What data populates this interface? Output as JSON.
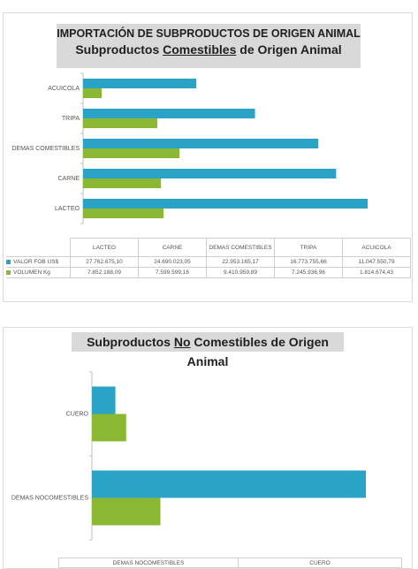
{
  "colors": {
    "valor": "#2aa3c7",
    "volumen": "#8ab833",
    "title_bg": "#d9d9d9"
  },
  "chart1": {
    "title_line1": "IMPORTACIÓN DE SUBPRODUCTOS DE ORIGEN ANIMAL",
    "title_line2_pre": "Subproductos ",
    "title_line2_u": "Comestibles",
    "title_line2_post": " de Origen Animal",
    "table_headers": [
      "LACTEO",
      "CARNE",
      "DEMAS COMESTIBLES",
      "TRIPA",
      "ACUICOLA"
    ],
    "table_rows": [
      {
        "label": "VALOR FOB US$",
        "cells": [
          "27.762.675,10",
          "24.690.023,05",
          "22.953.165,17",
          "16.773.755,66",
          "11.047.550,79"
        ]
      },
      {
        "label": "VOLUMEN Kg",
        "cells": [
          "7.852.188,09",
          "7.599.599,16",
          "9.410.959,89",
          "7.245.936,96",
          "1.814.674,43"
        ]
      }
    ]
  },
  "chart2": {
    "title_pre": "Subproductos ",
    "title_u": "No",
    "title_post": " Comestibles de Origen Animal",
    "table_headers": [
      "DEMAS NOCOMESTIBLES",
      "CUERO"
    ]
  },
  "chart_data": [
    {
      "type": "bar",
      "orientation": "horizontal",
      "title": "IMPORTACIÓN DE SUBPRODUCTOS DE ORIGEN ANIMAL — Subproductos Comestibles de Origen Animal",
      "categories": [
        "ACUICOLA",
        "TRIPA",
        "DEMAS COMESTIBLES",
        "CARNE",
        "LACTEO"
      ],
      "series": [
        {
          "name": "VALOR FOB US$",
          "values": [
            11047550.79,
            16773755.66,
            22953165.17,
            24690023.05,
            27762675.1
          ]
        },
        {
          "name": "VOLUMEN Kg",
          "values": [
            1814674.43,
            7245936.96,
            9410959.89,
            7599599.16,
            7852188.09
          ]
        }
      ],
      "legend": "table-bottom",
      "grid": false
    },
    {
      "type": "bar",
      "orientation": "horizontal",
      "title": "Subproductos No Comestibles de Origen Animal",
      "categories": [
        "CUERO",
        "DEMAS NOCOMESTIBLES"
      ],
      "series": [
        {
          "values": [
            2400000,
            28000000
          ]
        },
        {
          "values": [
            3500000,
            7000000
          ]
        }
      ],
      "legend": "table-bottom",
      "grid": false
    }
  ]
}
